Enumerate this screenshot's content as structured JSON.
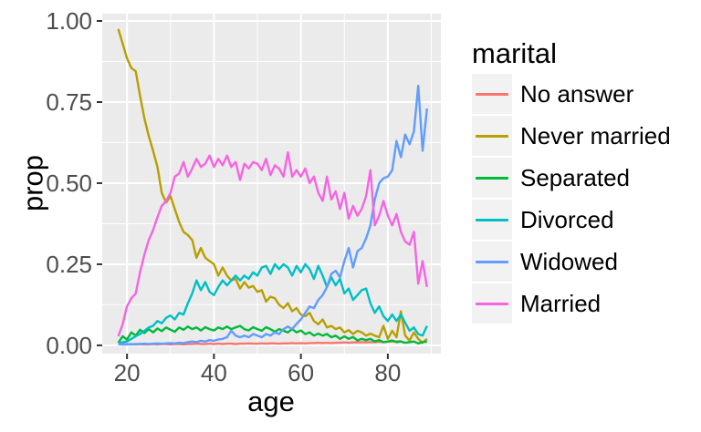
{
  "figure": {
    "x_axis_title": "age",
    "y_axis_title": "prop",
    "legend_title": "marital"
  },
  "colors": {
    "background": "#FFFFFF",
    "panel_bg": "#EBEBEB",
    "gridline": "#FFFFFF",
    "axis_text": "#4D4D4D",
    "axis_title": "#000000",
    "tick_mark": "#333333",
    "legend_key_bg": "#F2F2F2"
  },
  "chart_data": {
    "type": "line",
    "title": "",
    "xlabel": "age",
    "ylabel": "prop",
    "legend_title": "marital",
    "legend_position": "right",
    "grid": true,
    "panel_bg": "#EBEBEB",
    "x_range": [
      14.3,
      92.2
    ],
    "y_range": [
      -0.0255,
      1.0225
    ],
    "x_ticks": [
      20,
      40,
      60,
      80
    ],
    "x_tick_labels": [
      "20",
      "40",
      "60",
      "80"
    ],
    "x_minor": [
      30,
      50,
      70,
      90
    ],
    "y_ticks": [
      0,
      0.25,
      0.5,
      0.75,
      1.0
    ],
    "y_tick_labels": [
      "0.00",
      "0.25",
      "0.50",
      "0.75",
      "1.00"
    ],
    "y_minor": [
      0.125,
      0.375,
      0.625,
      0.875
    ],
    "ages": [
      18,
      19,
      20,
      21,
      22,
      23,
      24,
      25,
      26,
      27,
      28,
      29,
      30,
      31,
      32,
      33,
      34,
      35,
      36,
      37,
      38,
      39,
      40,
      41,
      42,
      43,
      44,
      45,
      46,
      47,
      48,
      49,
      50,
      51,
      52,
      53,
      54,
      55,
      56,
      57,
      58,
      59,
      60,
      61,
      62,
      63,
      64,
      65,
      66,
      67,
      68,
      69,
      70,
      71,
      72,
      73,
      74,
      75,
      76,
      77,
      78,
      79,
      80,
      81,
      82,
      83,
      84,
      85,
      86,
      87,
      88,
      89
    ],
    "series": [
      {
        "name": "No answer",
        "color": "#F8766D",
        "values": [
          0.004,
          0.003,
          0.003,
          0.004,
          0.003,
          0.004,
          0.003,
          0.003,
          0.004,
          0.003,
          0.004,
          0.004,
          0.003,
          0.004,
          0.004,
          0.003,
          0.004,
          0.004,
          0.005,
          0.004,
          0.004,
          0.005,
          0.004,
          0.005,
          0.004,
          0.005,
          0.005,
          0.004,
          0.005,
          0.005,
          0.006,
          0.005,
          0.005,
          0.006,
          0.005,
          0.006,
          0.006,
          0.005,
          0.006,
          0.006,
          0.007,
          0.006,
          0.007,
          0.006,
          0.007,
          0.007,
          0.008,
          0.007,
          0.008,
          0.007,
          0.008,
          0.008,
          0.009,
          0.008,
          0.009,
          0.009,
          0.01,
          0.009,
          0.01,
          0.01,
          0.011,
          0.01,
          0.011,
          0.012,
          0.012,
          0.013,
          null,
          null,
          null,
          null,
          null,
          null
        ]
      },
      {
        "name": "Never married",
        "color": "#B79F00",
        "values": [
          0.975,
          0.93,
          0.885,
          0.855,
          0.845,
          0.77,
          0.7,
          0.645,
          0.6,
          0.55,
          0.47,
          0.44,
          0.46,
          0.42,
          0.38,
          0.35,
          0.34,
          0.325,
          0.27,
          0.3,
          0.27,
          0.26,
          0.25,
          0.215,
          0.24,
          0.215,
          0.2,
          0.205,
          0.175,
          0.195,
          0.178,
          0.183,
          0.165,
          0.17,
          0.135,
          0.15,
          0.145,
          0.125,
          0.115,
          0.13,
          0.105,
          0.115,
          0.095,
          0.09,
          0.1,
          0.075,
          0.065,
          0.08,
          0.055,
          0.06,
          0.05,
          0.055,
          0.04,
          0.047,
          0.035,
          0.045,
          0.04,
          0.03,
          0.036,
          0.03,
          0.025,
          0.06,
          0.02,
          0.045,
          0.025,
          0.105,
          0.03,
          0.015,
          0.04,
          0.02,
          0.008,
          0.02
        ]
      },
      {
        "name": "Separated",
        "color": "#00BA38",
        "values": [
          0.008,
          0.028,
          0.018,
          0.04,
          0.03,
          0.048,
          0.038,
          0.05,
          0.04,
          0.052,
          0.044,
          0.055,
          0.048,
          0.042,
          0.055,
          0.048,
          0.058,
          0.05,
          0.055,
          0.046,
          0.056,
          0.05,
          0.046,
          0.055,
          0.05,
          0.058,
          0.05,
          0.055,
          0.06,
          0.05,
          0.046,
          0.056,
          0.05,
          0.045,
          0.056,
          0.05,
          0.042,
          0.05,
          0.045,
          0.04,
          0.05,
          0.04,
          0.046,
          0.035,
          0.04,
          0.03,
          0.036,
          0.03,
          0.035,
          0.025,
          0.03,
          0.02,
          0.028,
          0.02,
          0.026,
          0.015,
          0.02,
          0.016,
          0.02,
          0.012,
          0.016,
          0.01,
          0.012,
          0.015,
          0.01,
          0.012,
          0.008,
          0.01,
          0.012,
          0.006,
          0.01,
          0.012
        ]
      },
      {
        "name": "Divorced",
        "color": "#00BFC4",
        "values": [
          0.006,
          0.01,
          0.012,
          0.02,
          0.028,
          0.035,
          0.045,
          0.055,
          0.06,
          0.075,
          0.068,
          0.085,
          0.092,
          0.08,
          0.1,
          0.095,
          0.13,
          0.16,
          0.2,
          0.17,
          0.195,
          0.165,
          0.155,
          0.18,
          0.2,
          0.185,
          0.2,
          0.215,
          0.2,
          0.215,
          0.205,
          0.225,
          0.215,
          0.24,
          0.245,
          0.22,
          0.25,
          0.235,
          0.25,
          0.24,
          0.215,
          0.245,
          0.225,
          0.25,
          0.235,
          0.205,
          0.245,
          0.215,
          0.18,
          0.21,
          0.185,
          0.205,
          0.16,
          0.175,
          0.14,
          0.155,
          0.17,
          0.175,
          0.13,
          0.1,
          0.12,
          0.09,
          0.075,
          0.095,
          0.075,
          0.095,
          0.07,
          0.045,
          0.055,
          0.035,
          0.03,
          0.06
        ]
      },
      {
        "name": "Widowed",
        "color": "#619CFF",
        "values": [
          0.004,
          0.003,
          0.004,
          0.003,
          0.004,
          0.004,
          0.005,
          0.004,
          0.005,
          0.006,
          0.005,
          0.006,
          0.007,
          0.006,
          0.008,
          0.007,
          0.01,
          0.012,
          0.01,
          0.014,
          0.012,
          0.016,
          0.014,
          0.018,
          0.02,
          0.025,
          0.045,
          0.03,
          0.025,
          0.03,
          0.025,
          0.035,
          0.03,
          0.025,
          0.035,
          0.03,
          0.04,
          0.035,
          0.05,
          0.058,
          0.05,
          0.066,
          0.08,
          0.1,
          0.12,
          0.115,
          0.14,
          0.155,
          0.18,
          0.22,
          0.23,
          0.21,
          0.26,
          0.3,
          0.24,
          0.29,
          0.3,
          0.33,
          0.37,
          0.45,
          0.5,
          0.515,
          0.52,
          0.54,
          0.63,
          0.58,
          0.65,
          0.62,
          0.66,
          0.8,
          0.6,
          0.73
        ]
      },
      {
        "name": "Married",
        "color": "#F564E3",
        "values": [
          0.028,
          0.065,
          0.12,
          0.145,
          0.16,
          0.225,
          0.28,
          0.325,
          0.355,
          0.395,
          0.43,
          0.445,
          0.47,
          0.52,
          0.53,
          0.565,
          0.52,
          0.545,
          0.575,
          0.55,
          0.56,
          0.585,
          0.55,
          0.575,
          0.555,
          0.585,
          0.55,
          0.565,
          0.51,
          0.56,
          0.545,
          0.565,
          0.56,
          0.54,
          0.575,
          0.525,
          0.555,
          0.545,
          0.52,
          0.595,
          0.52,
          0.54,
          0.52,
          0.545,
          0.5,
          0.52,
          0.47,
          0.445,
          0.52,
          0.45,
          0.475,
          0.42,
          0.47,
          0.39,
          0.43,
          0.4,
          0.42,
          0.46,
          0.54,
          0.37,
          0.4,
          0.445,
          0.4,
          0.37,
          0.405,
          0.35,
          0.32,
          0.31,
          0.35,
          0.19,
          0.26,
          0.18
        ]
      }
    ]
  }
}
